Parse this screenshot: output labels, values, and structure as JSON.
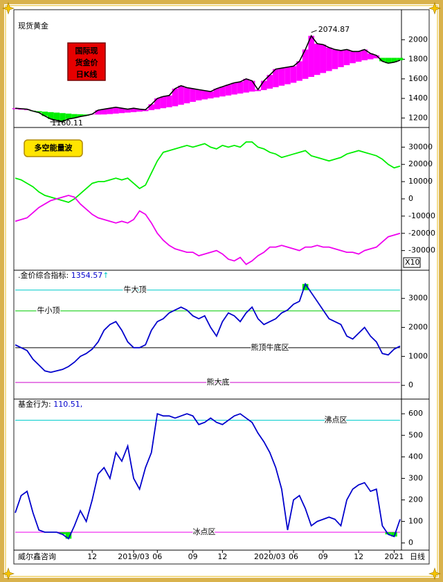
{
  "chart_data": [
    {
      "type": "band",
      "title": "现货黄金",
      "badge": [
        "国际现",
        "货金价",
        "日K线"
      ],
      "ylim": [
        1110,
        2300
      ],
      "yticks": [
        1200,
        1400,
        1600,
        1800,
        2000
      ],
      "high": 2074.87,
      "low": 1160.11,
      "fill_colors": {
        "above": "#ff00ff",
        "below": "#00ee00"
      },
      "series": [
        {
          "color": "#000000",
          "values": [
            1300,
            1295,
            1290,
            1270,
            1255,
            1220,
            1190,
            1175,
            1165,
            1190,
            1200,
            1215,
            1225,
            1240,
            1280,
            1290,
            1300,
            1310,
            1300,
            1290,
            1300,
            1290,
            1285,
            1340,
            1400,
            1420,
            1430,
            1500,
            1530,
            1510,
            1500,
            1490,
            1480,
            1470,
            1500,
            1520,
            1540,
            1560,
            1570,
            1600,
            1580,
            1490,
            1580,
            1640,
            1700,
            1710,
            1720,
            1730,
            1780,
            1900,
            2040,
            1960,
            1950,
            1920,
            1900,
            1890,
            1900,
            1880,
            1880,
            1900,
            1860,
            1840,
            1780,
            1760,
            1770,
            1790
          ]
        },
        {
          "color": "#d000d0",
          "values": [
            1290,
            1285,
            1280,
            1275,
            1270,
            1265,
            1260,
            1255,
            1250,
            1245,
            1240,
            1238,
            1236,
            1235,
            1235,
            1236,
            1240,
            1245,
            1250,
            1255,
            1260,
            1265,
            1270,
            1280,
            1290,
            1300,
            1310,
            1320,
            1335,
            1350,
            1365,
            1380,
            1390,
            1400,
            1410,
            1420,
            1430,
            1440,
            1450,
            1460,
            1470,
            1475,
            1485,
            1500,
            1515,
            1530,
            1545,
            1560,
            1580,
            1600,
            1620,
            1640,
            1660,
            1680,
            1700,
            1720,
            1740,
            1760,
            1775,
            1790,
            1800,
            1810,
            1815,
            1815,
            1815,
            1815
          ]
        }
      ]
    },
    {
      "type": "line",
      "badge": "多空能量波",
      "axis_note": "X10",
      "ylim": [
        -41000,
        41000
      ],
      "yticks": [
        30000,
        20000,
        10000,
        0,
        -10000,
        -20000,
        -30000
      ],
      "series": [
        {
          "color": "#00ee00",
          "values": [
            12000,
            11000,
            9000,
            7000,
            4000,
            2000,
            1000,
            0,
            -1000,
            -2000,
            0,
            3000,
            6000,
            9000,
            10000,
            10000,
            11000,
            12000,
            11000,
            12000,
            9000,
            6000,
            8000,
            15000,
            22000,
            27000,
            28000,
            29000,
            30000,
            31000,
            30000,
            31000,
            32000,
            30000,
            29000,
            31000,
            30000,
            31000,
            30000,
            33000,
            33000,
            30000,
            29000,
            27000,
            26000,
            24000,
            25000,
            26000,
            27000,
            28000,
            25000,
            24000,
            23000,
            22000,
            23000,
            24000,
            26000,
            27000,
            28000,
            27000,
            26000,
            25000,
            23000,
            20000,
            18000,
            19000
          ]
        },
        {
          "color": "#ee00ee",
          "values": [
            -13000,
            -12000,
            -11000,
            -8000,
            -5000,
            -3000,
            -1000,
            0,
            1000,
            2000,
            1000,
            -3000,
            -6000,
            -9000,
            -11000,
            -12000,
            -13000,
            -14000,
            -13000,
            -14000,
            -12000,
            -7000,
            -9000,
            -14000,
            -20000,
            -24000,
            -27000,
            -29000,
            -30000,
            -31000,
            -31000,
            -33000,
            -32000,
            -31000,
            -30000,
            -32000,
            -35000,
            -36000,
            -34000,
            -38000,
            -36000,
            -33000,
            -31000,
            -28000,
            -28000,
            -27000,
            -28000,
            -29000,
            -30000,
            -28000,
            -28000,
            -27000,
            -28000,
            -28000,
            -29000,
            -30000,
            -31000,
            -31000,
            -32000,
            -30000,
            -29000,
            -28000,
            -25000,
            -22000,
            -21000,
            -20000
          ]
        }
      ]
    },
    {
      "type": "line",
      "title": ".金价综合指标:",
      "value": 1354.57,
      "arrow": "↑",
      "ylim": [
        -450,
        3950
      ],
      "yticks": [
        3000,
        2000,
        1000,
        0
      ],
      "over_fill_color": "#00ee00",
      "levels": [
        {
          "name": "牛大顶",
          "value": 3290,
          "color": "#00cccc",
          "label_color": "#00c0c0"
        },
        {
          "name": "牛小顶",
          "value": 2570,
          "color": "#00cc00",
          "label_color": "#00c000"
        },
        {
          "name": "熊顶牛底区",
          "value": 1300,
          "color": "#000000",
          "label_color": "#ff3300"
        },
        {
          "name": "熊大底",
          "value": 100,
          "color": "#cc00cc",
          "label_color": "#cc00cc"
        }
      ],
      "series": [
        {
          "color": "#0000cc",
          "values": [
            1400,
            1300,
            1200,
            900,
            700,
            500,
            450,
            500,
            550,
            650,
            800,
            1000,
            1100,
            1250,
            1500,
            1900,
            2100,
            2200,
            1900,
            1500,
            1300,
            1300,
            1400,
            1900,
            2200,
            2300,
            2500,
            2600,
            2700,
            2600,
            2400,
            2300,
            2400,
            2000,
            1700,
            2200,
            2500,
            2400,
            2200,
            2500,
            2700,
            2300,
            2100,
            2200,
            2300,
            2500,
            2600,
            2800,
            2900,
            3500,
            3200,
            2900,
            2600,
            2300,
            2200,
            2100,
            1700,
            1600,
            1800,
            2000,
            1700,
            1500,
            1100,
            1050,
            1250,
            1355
          ]
        }
      ]
    },
    {
      "type": "line",
      "title": "基金行为:",
      "value_label": "110.51,",
      "ylim": [
        -30,
        665
      ],
      "yticks": [
        600,
        500,
        400,
        300,
        200,
        100,
        0
      ],
      "under_fill_color": "#00ee00",
      "levels": [
        {
          "name": "沸点区",
          "value": 570,
          "color": "#00cccc",
          "label_color": "#00c8e0"
        },
        {
          "name": "冰点区",
          "value": 50,
          "color": "#ee00ee",
          "label_color": "#ee00ee"
        }
      ],
      "categories": [
        null,
        null,
        null,
        null,
        null,
        null,
        null,
        null,
        null,
        null,
        null,
        null,
        null,
        "12",
        null,
        null,
        null,
        null,
        null,
        null,
        "2019/03",
        null,
        null,
        null,
        "06",
        null,
        null,
        null,
        null,
        null,
        "09",
        null,
        null,
        null,
        null,
        "12",
        null,
        null,
        null,
        null,
        null,
        null,
        null,
        "2020/03",
        null,
        null,
        null,
        "06",
        null,
        null,
        null,
        null,
        "09",
        null,
        null,
        null,
        null,
        null,
        "12",
        null,
        null,
        null,
        null,
        null,
        "2021",
        null
      ],
      "series": [
        {
          "color": "#0000cc",
          "values": [
            140,
            220,
            240,
            140,
            60,
            50,
            50,
            50,
            40,
            20,
            80,
            150,
            100,
            200,
            320,
            350,
            300,
            420,
            380,
            450,
            300,
            250,
            350,
            420,
            600,
            590,
            590,
            580,
            590,
            600,
            590,
            550,
            560,
            580,
            560,
            550,
            570,
            590,
            600,
            580,
            560,
            510,
            470,
            420,
            350,
            250,
            60,
            200,
            220,
            160,
            80,
            100,
            110,
            120,
            110,
            80,
            200,
            250,
            270,
            280,
            240,
            250,
            80,
            40,
            30,
            110
          ]
        }
      ]
    }
  ],
  "footer": {
    "source": "威尔鑫咨询",
    "period": "日线"
  }
}
